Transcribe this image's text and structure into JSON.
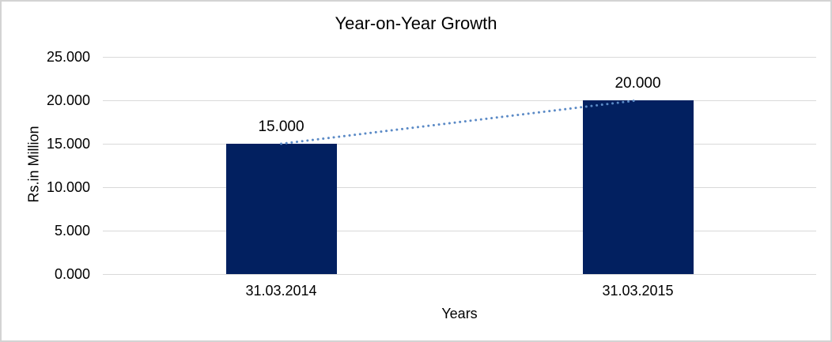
{
  "chart_data": {
    "type": "bar",
    "title": "Year-on-Year Growth",
    "xlabel": "Years",
    "ylabel": "Rs.in Million",
    "categories": [
      "31.03.2014",
      "31.03.2015"
    ],
    "values": [
      15000,
      20000
    ],
    "data_labels": [
      "15.000",
      "20.000"
    ],
    "y_tick_labels": [
      "0.000",
      "5.000",
      "10.000",
      "15.000",
      "20.000",
      "25.000"
    ],
    "ylim": [
      0,
      25000
    ],
    "grid": true,
    "legend": "none",
    "trendline": {
      "type": "linear",
      "style": "dotted",
      "from_category": "31.03.2014",
      "to_category": "31.03.2015"
    },
    "colors": {
      "bar": "#022060",
      "trendline": "#5b8ac6",
      "gridline": "#d9d9d9",
      "text": "#000000",
      "chart_border": "#d3d3d3",
      "background": "#ffffff"
    }
  }
}
